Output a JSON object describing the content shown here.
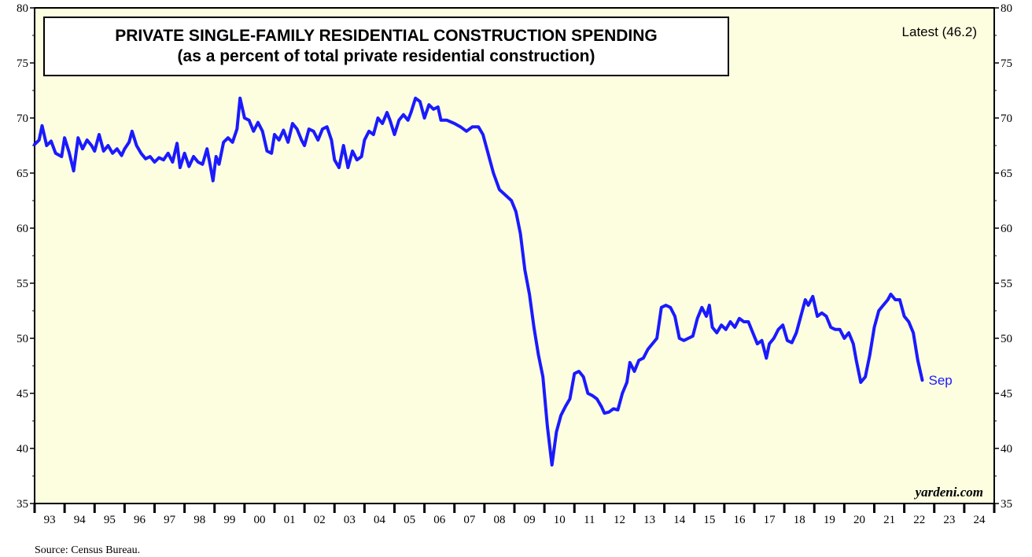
{
  "chart_data": {
    "type": "line",
    "title": "PRIVATE SINGLE-FAMILY RESIDENTIAL CONSTRUCTION SPENDING",
    "subtitle": "(as a percent of total private residential construction)",
    "annotation_latest": "Latest (46.2)",
    "end_label": "Sep",
    "brand": "yardeni.com",
    "source": "Source: Census Bureau.",
    "ylim": [
      35,
      80
    ],
    "y_ticks": [
      35,
      40,
      45,
      50,
      55,
      60,
      65,
      70,
      75,
      80
    ],
    "y_tick_labels": [
      "35",
      "40",
      "45",
      "50",
      "55",
      "60",
      "65",
      "70",
      "75",
      "80"
    ],
    "x_tick_labels": [
      "93",
      "94",
      "95",
      "96",
      "97",
      "98",
      "99",
      "00",
      "01",
      "02",
      "03",
      "04",
      "05",
      "06",
      "07",
      "08",
      "09",
      "10",
      "11",
      "12",
      "13",
      "14",
      "15",
      "16",
      "17",
      "18",
      "19",
      "20",
      "21",
      "22",
      "23",
      "24"
    ],
    "xlim": [
      1993,
      2025
    ],
    "grid": false,
    "colors": {
      "background": "#fdfde0",
      "line": "#1a1aff",
      "axis": "#000000"
    },
    "series": [
      {
        "values": [
          [
            1993.0,
            67.6
          ],
          [
            1993.15,
            68.0
          ],
          [
            1993.25,
            69.3
          ],
          [
            1993.4,
            67.5
          ],
          [
            1993.55,
            67.9
          ],
          [
            1993.7,
            66.8
          ],
          [
            1993.9,
            66.5
          ],
          [
            1994.0,
            68.2
          ],
          [
            1994.15,
            66.9
          ],
          [
            1994.3,
            65.2
          ],
          [
            1994.45,
            68.2
          ],
          [
            1994.6,
            67.2
          ],
          [
            1994.75,
            68.0
          ],
          [
            1994.9,
            67.5
          ],
          [
            1995.0,
            67.0
          ],
          [
            1995.15,
            68.5
          ],
          [
            1995.3,
            67.0
          ],
          [
            1995.45,
            67.5
          ],
          [
            1995.6,
            66.8
          ],
          [
            1995.75,
            67.2
          ],
          [
            1995.9,
            66.6
          ],
          [
            1996.0,
            67.2
          ],
          [
            1996.15,
            67.8
          ],
          [
            1996.25,
            68.8
          ],
          [
            1996.4,
            67.5
          ],
          [
            1996.55,
            66.8
          ],
          [
            1996.7,
            66.3
          ],
          [
            1996.85,
            66.5
          ],
          [
            1997.0,
            66.0
          ],
          [
            1997.15,
            66.4
          ],
          [
            1997.3,
            66.2
          ],
          [
            1997.45,
            66.8
          ],
          [
            1997.6,
            66.0
          ],
          [
            1997.75,
            67.7
          ],
          [
            1997.85,
            65.5
          ],
          [
            1998.0,
            66.8
          ],
          [
            1998.15,
            65.6
          ],
          [
            1998.3,
            66.5
          ],
          [
            1998.45,
            66.0
          ],
          [
            1998.6,
            65.8
          ],
          [
            1998.75,
            67.2
          ],
          [
            1998.85,
            65.8
          ],
          [
            1998.95,
            64.3
          ],
          [
            1999.05,
            66.5
          ],
          [
            1999.15,
            65.8
          ],
          [
            1999.3,
            67.8
          ],
          [
            1999.45,
            68.2
          ],
          [
            1999.6,
            67.8
          ],
          [
            1999.75,
            69.0
          ],
          [
            1999.85,
            71.8
          ],
          [
            2000.0,
            70.0
          ],
          [
            2000.15,
            69.8
          ],
          [
            2000.3,
            68.8
          ],
          [
            2000.45,
            69.6
          ],
          [
            2000.6,
            68.8
          ],
          [
            2000.75,
            67.0
          ],
          [
            2000.9,
            66.8
          ],
          [
            2001.0,
            68.5
          ],
          [
            2001.15,
            68.0
          ],
          [
            2001.3,
            68.9
          ],
          [
            2001.45,
            67.8
          ],
          [
            2001.6,
            69.5
          ],
          [
            2001.75,
            69.0
          ],
          [
            2001.9,
            68.0
          ],
          [
            2002.0,
            67.5
          ],
          [
            2002.15,
            69.0
          ],
          [
            2002.3,
            68.8
          ],
          [
            2002.45,
            68.0
          ],
          [
            2002.6,
            69.0
          ],
          [
            2002.75,
            69.2
          ],
          [
            2002.9,
            68.0
          ],
          [
            2003.0,
            66.2
          ],
          [
            2003.15,
            65.5
          ],
          [
            2003.3,
            67.5
          ],
          [
            2003.45,
            65.5
          ],
          [
            2003.6,
            67.0
          ],
          [
            2003.75,
            66.2
          ],
          [
            2003.9,
            66.5
          ],
          [
            2004.0,
            68.0
          ],
          [
            2004.15,
            68.8
          ],
          [
            2004.3,
            68.5
          ],
          [
            2004.45,
            70.0
          ],
          [
            2004.6,
            69.5
          ],
          [
            2004.75,
            70.5
          ],
          [
            2004.85,
            69.8
          ],
          [
            2005.0,
            68.5
          ],
          [
            2005.15,
            69.8
          ],
          [
            2005.3,
            70.3
          ],
          [
            2005.45,
            69.8
          ],
          [
            2005.55,
            70.5
          ],
          [
            2005.7,
            71.8
          ],
          [
            2005.85,
            71.5
          ],
          [
            2006.0,
            70.0
          ],
          [
            2006.15,
            71.2
          ],
          [
            2006.3,
            70.8
          ],
          [
            2006.45,
            71.0
          ],
          [
            2006.55,
            69.8
          ],
          [
            2006.75,
            69.8
          ],
          [
            2007.0,
            69.5
          ],
          [
            2007.2,
            69.2
          ],
          [
            2007.4,
            68.8
          ],
          [
            2007.6,
            69.2
          ],
          [
            2007.8,
            69.2
          ],
          [
            2007.95,
            68.5
          ],
          [
            2008.1,
            67.0
          ],
          [
            2008.3,
            65.0
          ],
          [
            2008.5,
            63.5
          ],
          [
            2008.7,
            63.0
          ],
          [
            2008.9,
            62.5
          ],
          [
            2009.05,
            61.5
          ],
          [
            2009.2,
            59.5
          ],
          [
            2009.35,
            56.2
          ],
          [
            2009.5,
            54.0
          ],
          [
            2009.65,
            51.0
          ],
          [
            2009.8,
            48.5
          ],
          [
            2009.95,
            46.5
          ],
          [
            2010.1,
            42.0
          ],
          [
            2010.25,
            38.5
          ],
          [
            2010.4,
            41.5
          ],
          [
            2010.55,
            43.0
          ],
          [
            2010.7,
            43.8
          ],
          [
            2010.85,
            44.5
          ],
          [
            2011.0,
            46.8
          ],
          [
            2011.15,
            47.0
          ],
          [
            2011.3,
            46.5
          ],
          [
            2011.45,
            45.0
          ],
          [
            2011.6,
            44.8
          ],
          [
            2011.75,
            44.5
          ],
          [
            2011.9,
            43.8
          ],
          [
            2012.0,
            43.2
          ],
          [
            2012.15,
            43.3
          ],
          [
            2012.3,
            43.6
          ],
          [
            2012.45,
            43.5
          ],
          [
            2012.6,
            45.0
          ],
          [
            2012.75,
            46.0
          ],
          [
            2012.85,
            47.8
          ],
          [
            2013.0,
            47.0
          ],
          [
            2013.15,
            48.0
          ],
          [
            2013.3,
            48.2
          ],
          [
            2013.45,
            49.0
          ],
          [
            2013.6,
            49.5
          ],
          [
            2013.75,
            50.0
          ],
          [
            2013.9,
            52.8
          ],
          [
            2014.05,
            53.0
          ],
          [
            2014.2,
            52.8
          ],
          [
            2014.35,
            52.0
          ],
          [
            2014.5,
            50.0
          ],
          [
            2014.65,
            49.8
          ],
          [
            2014.8,
            50.0
          ],
          [
            2014.95,
            50.2
          ],
          [
            2015.1,
            51.8
          ],
          [
            2015.25,
            52.8
          ],
          [
            2015.4,
            52.0
          ],
          [
            2015.5,
            53.0
          ],
          [
            2015.6,
            51.0
          ],
          [
            2015.75,
            50.5
          ],
          [
            2015.9,
            51.2
          ],
          [
            2016.05,
            50.8
          ],
          [
            2016.2,
            51.5
          ],
          [
            2016.35,
            51.0
          ],
          [
            2016.5,
            51.8
          ],
          [
            2016.65,
            51.5
          ],
          [
            2016.8,
            51.5
          ],
          [
            2016.95,
            50.5
          ],
          [
            2017.1,
            49.5
          ],
          [
            2017.25,
            49.8
          ],
          [
            2017.4,
            48.2
          ],
          [
            2017.5,
            49.5
          ],
          [
            2017.65,
            50.0
          ],
          [
            2017.8,
            50.8
          ],
          [
            2017.95,
            51.2
          ],
          [
            2018.1,
            49.8
          ],
          [
            2018.25,
            49.6
          ],
          [
            2018.4,
            50.5
          ],
          [
            2018.55,
            52.0
          ],
          [
            2018.7,
            53.5
          ],
          [
            2018.8,
            53.0
          ],
          [
            2018.95,
            53.8
          ],
          [
            2019.1,
            52.0
          ],
          [
            2019.25,
            52.3
          ],
          [
            2019.4,
            52.0
          ],
          [
            2019.55,
            51.0
          ],
          [
            2019.7,
            50.8
          ],
          [
            2019.85,
            50.8
          ],
          [
            2020.0,
            50.0
          ],
          [
            2020.15,
            50.5
          ],
          [
            2020.3,
            49.5
          ],
          [
            2020.4,
            48.0
          ],
          [
            2020.55,
            46.0
          ],
          [
            2020.7,
            46.5
          ],
          [
            2020.85,
            48.5
          ],
          [
            2021.0,
            51.0
          ],
          [
            2021.15,
            52.5
          ],
          [
            2021.3,
            53.0
          ],
          [
            2021.45,
            53.5
          ],
          [
            2021.55,
            54.0
          ],
          [
            2021.7,
            53.5
          ],
          [
            2021.85,
            53.5
          ],
          [
            2022.0,
            52.0
          ],
          [
            2022.15,
            51.5
          ],
          [
            2022.3,
            50.5
          ],
          [
            2022.45,
            48.0
          ],
          [
            2022.6,
            46.2
          ]
        ]
      }
    ]
  }
}
